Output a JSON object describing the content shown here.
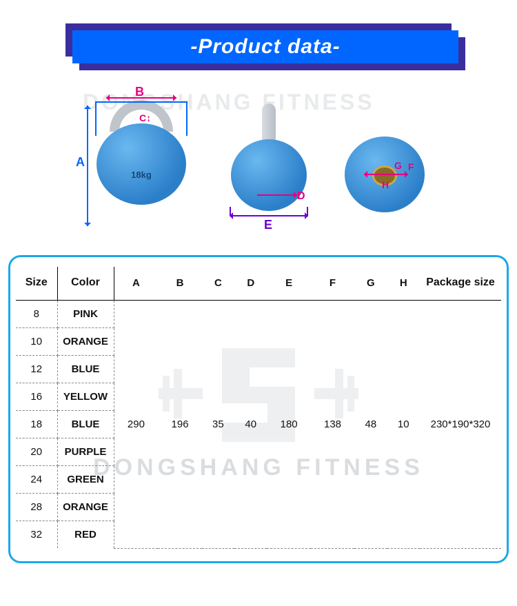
{
  "banner": {
    "title": "-Product data-"
  },
  "watermark": "DONGSHANG FITNESS",
  "diagram": {
    "labels": {
      "A": "A",
      "B": "B",
      "C": "C",
      "D": "D",
      "E": "E",
      "F": "F",
      "G": "G",
      "H": "H"
    },
    "weight_label": "18kg",
    "colors": {
      "ball": "#2b7fc9",
      "ball_hi": "#6bb8f0",
      "handle": "#c0c5cc",
      "dim_blue": "#0066ff",
      "dim_pink": "#e6007e",
      "dim_violet": "#6a00d6"
    }
  },
  "table": {
    "border_color": "#1aa8e8",
    "columns": [
      "Size",
      "Color",
      "A",
      "B",
      "C",
      "D",
      "E",
      "F",
      "G",
      "H",
      "Package size"
    ],
    "shared": {
      "A": "290",
      "B": "196",
      "C": "35",
      "D": "40",
      "E": "180",
      "F": "138",
      "G": "48",
      "H": "10",
      "package": "230*190*320"
    },
    "rows": [
      {
        "size": "8",
        "color": "PINK"
      },
      {
        "size": "10",
        "color": "ORANGE"
      },
      {
        "size": "12",
        "color": "BLUE"
      },
      {
        "size": "16",
        "color": "YELLOW"
      },
      {
        "size": "18",
        "color": "BLUE"
      },
      {
        "size": "20",
        "color": "PURPLE"
      },
      {
        "size": "24",
        "color": "GREEN"
      },
      {
        "size": "28",
        "color": "ORANGE"
      },
      {
        "size": "32",
        "color": "RED"
      }
    ]
  }
}
